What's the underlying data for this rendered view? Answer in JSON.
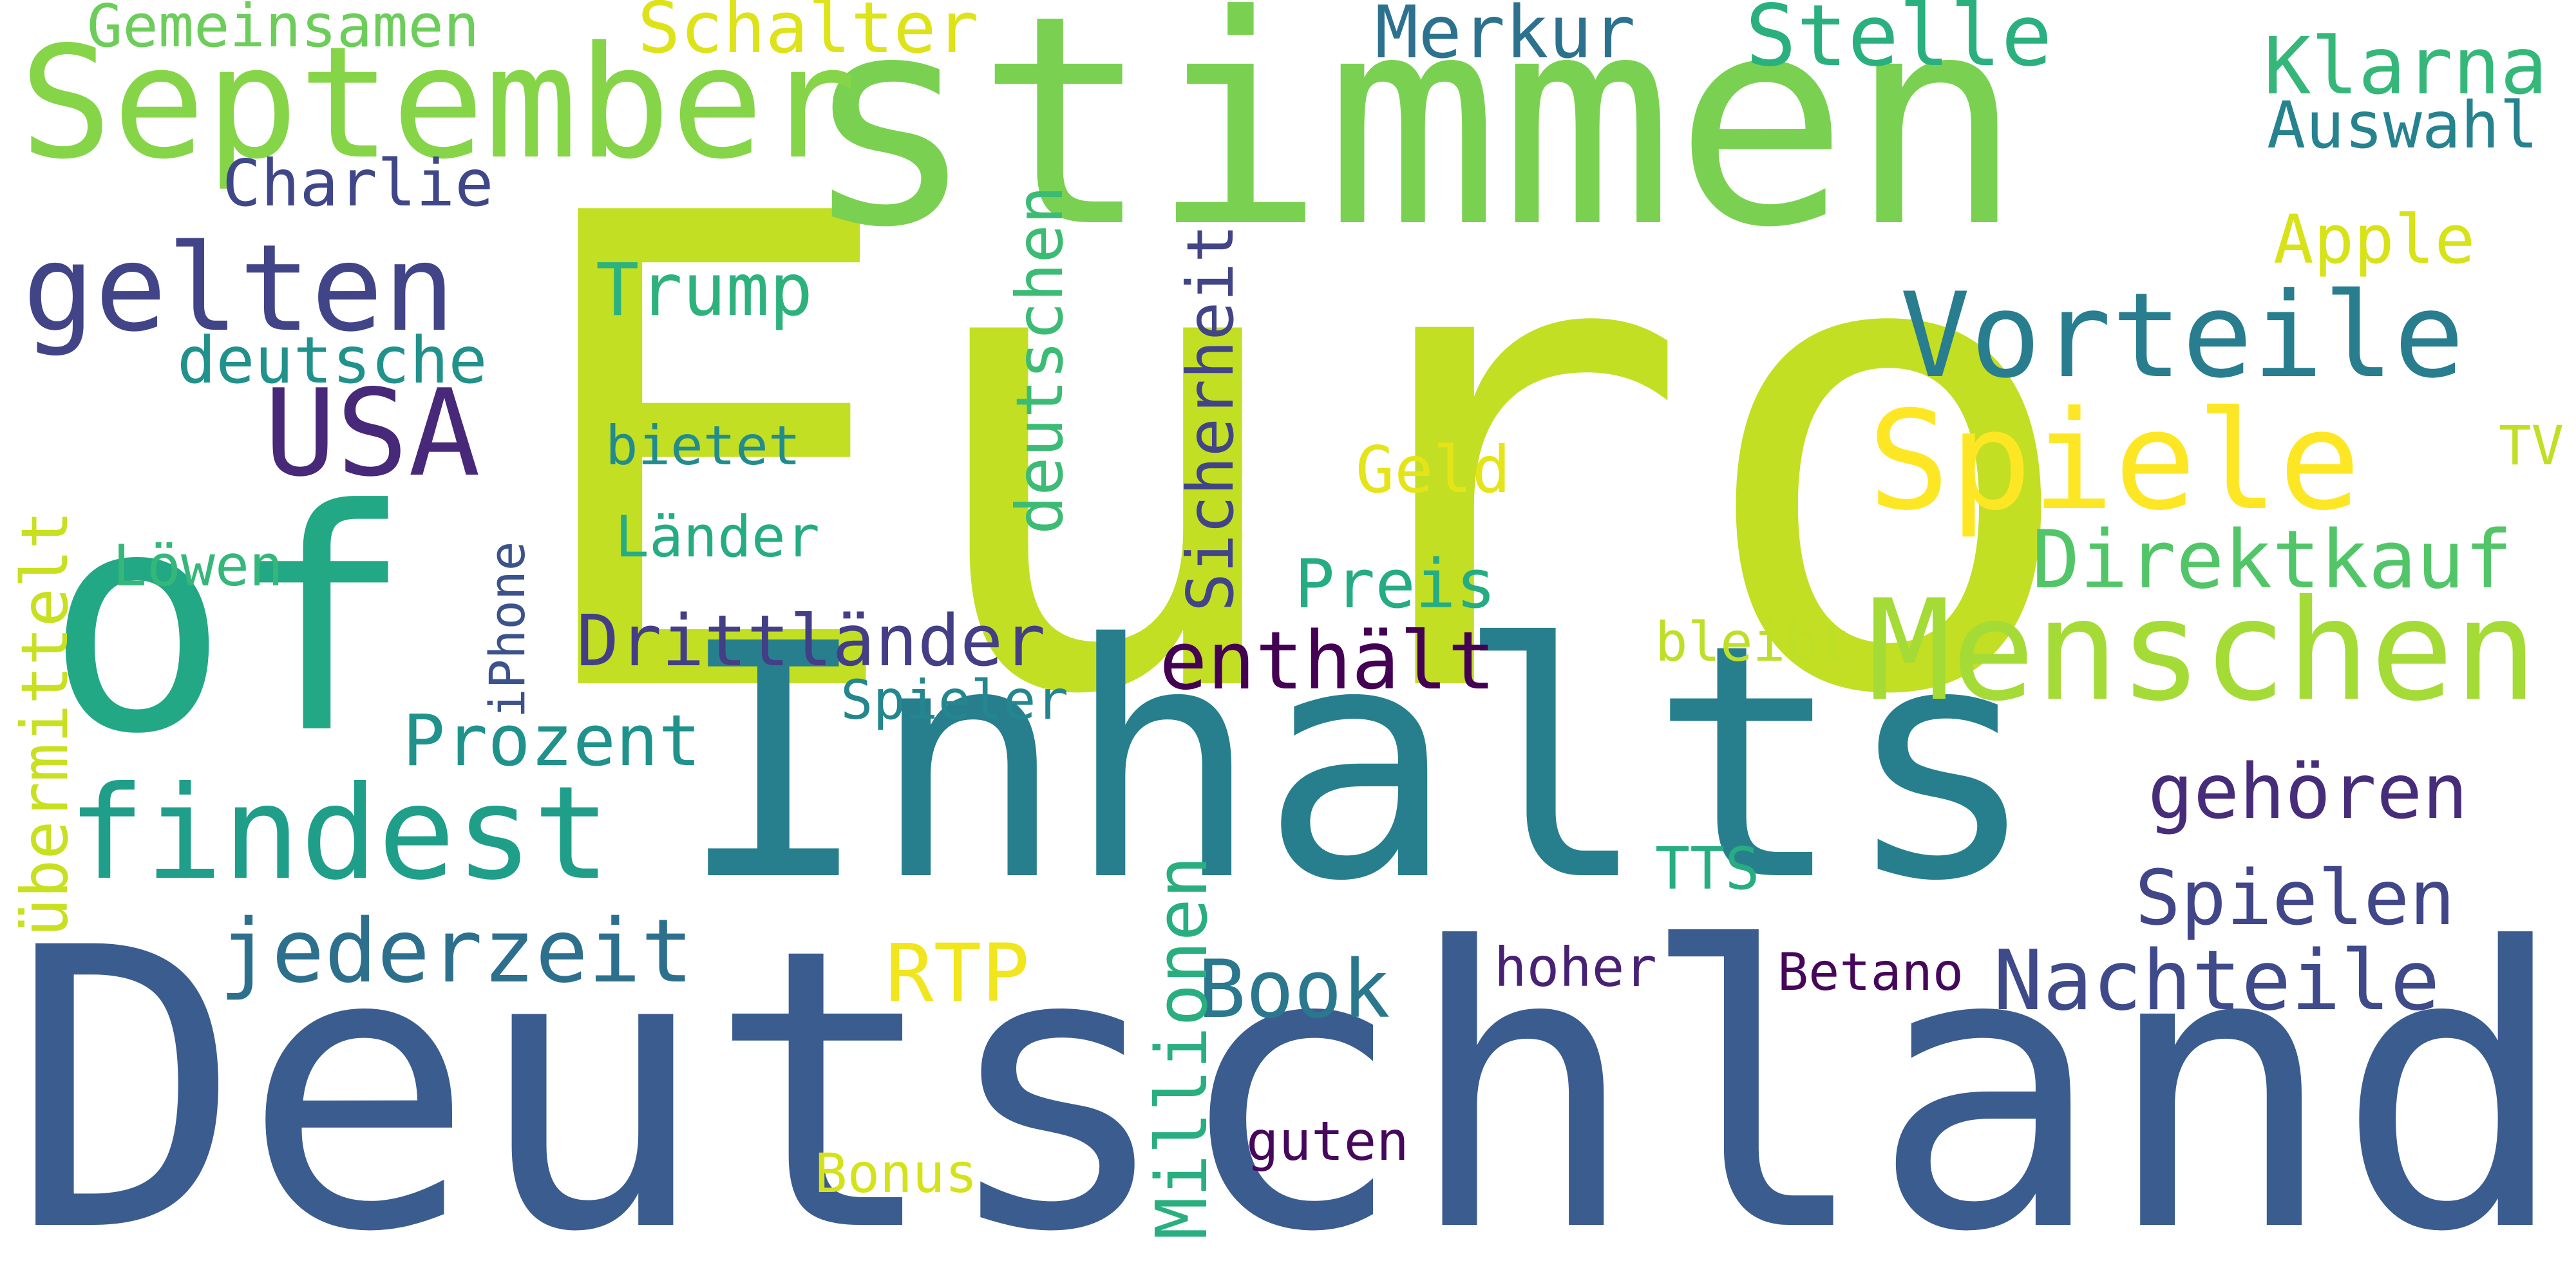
{
  "background": "#ffffff",
  "words": [
    {
      "text": "Euro",
      "color": "#c2df23"
    },
    {
      "text": "Deutschland",
      "color": "#3b5c8f"
    },
    {
      "text": "Inhalts",
      "color": "#277f8e"
    },
    {
      "text": "stimmen",
      "color": "#7ad151"
    },
    {
      "text": "of",
      "color": "#22a884"
    },
    {
      "text": "September",
      "color": "#86d549"
    },
    {
      "text": "Menschen",
      "color": "#a5db36"
    },
    {
      "text": "Spiele",
      "color": "#fde725"
    },
    {
      "text": "findest",
      "color": "#1f9e89"
    },
    {
      "text": "Vorteile",
      "color": "#287d8e"
    },
    {
      "text": "gelten",
      "color": "#414487"
    },
    {
      "text": "USA",
      "color": "#482878"
    },
    {
      "text": "Nachteile",
      "color": "#3e4a89"
    },
    {
      "text": "Stelle",
      "color": "#2ab07f"
    },
    {
      "text": "Direktkauf",
      "color": "#52c569"
    },
    {
      "text": "jederzeit",
      "color": "#2d708e"
    },
    {
      "text": "Klarna",
      "color": "#35b779"
    },
    {
      "text": "Spielen",
      "color": "#404688"
    },
    {
      "text": "gehören",
      "color": "#472c7a"
    },
    {
      "text": "Merkur",
      "color": "#2c728e"
    },
    {
      "text": "Gemeinsamen",
      "color": "#6ccd5a"
    },
    {
      "text": "Schalter",
      "color": "#dde318"
    },
    {
      "text": "Auswahl",
      "color": "#26828e"
    },
    {
      "text": "Charlie",
      "color": "#3f4788"
    },
    {
      "text": "Apple",
      "color": "#d8e219"
    },
    {
      "text": "Trump",
      "color": "#2db27d"
    },
    {
      "text": "deutsche",
      "color": "#21918c"
    },
    {
      "text": "deutschen",
      "color": "#3cbb75"
    },
    {
      "text": "Sicherheit",
      "color": "#414487"
    },
    {
      "text": "enthält",
      "color": "#440154"
    },
    {
      "text": "Drittländer",
      "color": "#433e85"
    },
    {
      "text": "Prozent",
      "color": "#20928c"
    },
    {
      "text": "Book",
      "color": "#2a778e"
    },
    {
      "text": "Millionen",
      "color": "#29af7f"
    },
    {
      "text": "übermittelt",
      "color": "#c8e020"
    },
    {
      "text": "Preis",
      "color": "#25ac82"
    },
    {
      "text": "Geld",
      "color": "#e5e419"
    },
    {
      "text": "bietet",
      "color": "#228c8d"
    },
    {
      "text": "Länder",
      "color": "#25ac82"
    },
    {
      "text": "Löwen",
      "color": "#35b779"
    },
    {
      "text": "iPhone",
      "color": "#3b528b"
    },
    {
      "text": "bleibt",
      "color": "#bddf26"
    },
    {
      "text": "Spieler",
      "color": "#24868e"
    },
    {
      "text": "TTS",
      "color": "#27ad81"
    },
    {
      "text": "RTP",
      "color": "#f1e51d"
    },
    {
      "text": "hoher",
      "color": "#482173"
    },
    {
      "text": "Betano",
      "color": "#46075a"
    },
    {
      "text": "guten",
      "color": "#46085c"
    },
    {
      "text": "Bonus",
      "color": "#d5e21a"
    },
    {
      "text": "TV",
      "color": "#c0df25"
    }
  ]
}
